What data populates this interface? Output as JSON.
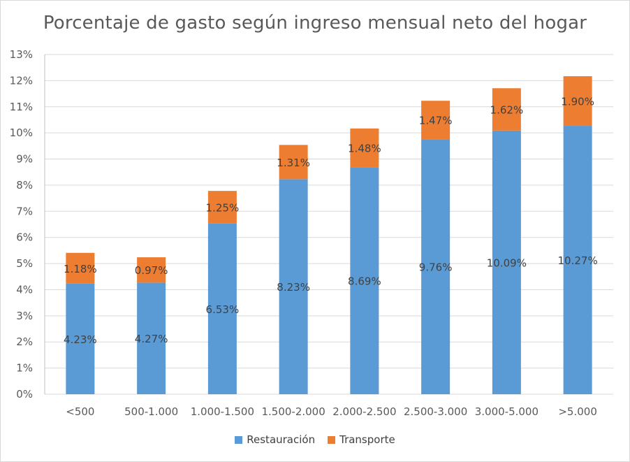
{
  "chart_data": {
    "type": "bar",
    "stacked": true,
    "title": "Porcentaje de gasto según ingreso mensual neto del hogar",
    "xlabel": "",
    "ylabel": "",
    "ylim": [
      0,
      13
    ],
    "y_ticks": [
      "0%",
      "1%",
      "2%",
      "3%",
      "4%",
      "5%",
      "6%",
      "7%",
      "8%",
      "9%",
      "10%",
      "11%",
      "12%",
      "13%"
    ],
    "grid": true,
    "legend_position": "bottom",
    "categories": [
      "<500",
      "500-1.000",
      "1.000-1.500",
      "1.500-2.000",
      "2.000-2.500",
      "2.500-3.000",
      "3.000-5.000",
      ">5.000"
    ],
    "series": [
      {
        "name": "Restauración",
        "color": "#5b9bd5",
        "values": [
          4.23,
          4.27,
          6.53,
          8.23,
          8.69,
          9.76,
          10.09,
          10.27
        ],
        "labels": [
          "4.23%",
          "4.27%",
          "6.53%",
          "8.23%",
          "8.69%",
          "9.76%",
          "10.09%",
          "10.27%"
        ]
      },
      {
        "name": "Transporte",
        "color": "#ed7d31",
        "values": [
          1.18,
          0.97,
          1.25,
          1.31,
          1.48,
          1.47,
          1.62,
          1.9
        ],
        "labels": [
          "1.18%",
          "0.97%",
          "1.25%",
          "1.31%",
          "1.48%",
          "1.47%",
          "1.62%",
          "1.90%"
        ]
      }
    ]
  }
}
